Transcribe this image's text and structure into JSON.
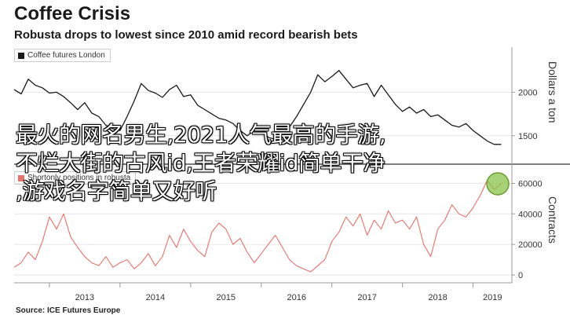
{
  "header": {
    "title": "Coffee Crisis",
    "subtitle": "Robusta drops to lowest since 2010 amid record bearish bets"
  },
  "source": "Source: ICE Futures Europe",
  "overlay_text": [
    "最火的网名男生,2021人气最高的手游,",
    "不烂大街的古风id,王者荣耀id简单干净",
    ",游戏名字简单又好听"
  ],
  "colors": {
    "price_line": "#1a1a1a",
    "positions_line": "#e8716a",
    "highlight_circle": "#8bc34a",
    "grid": "#e6e6e6"
  },
  "chart_data": [
    {
      "type": "line",
      "legend": "Coffee futures London",
      "ylabel": "Dollars a ton",
      "ylim": [
        1200,
        2500
      ],
      "yticks": [
        1500,
        2000
      ],
      "xlim": [
        2012.5,
        2019.55
      ],
      "series": [
        {
          "name": "Coffee futures London",
          "x": [
            2012.5,
            2012.6,
            2012.7,
            2012.8,
            2012.9,
            2013.0,
            2013.1,
            2013.2,
            2013.3,
            2013.4,
            2013.5,
            2013.6,
            2013.7,
            2013.8,
            2013.9,
            2014.0,
            2014.1,
            2014.2,
            2014.3,
            2014.4,
            2014.5,
            2014.6,
            2014.7,
            2014.8,
            2014.9,
            2015.0,
            2015.1,
            2015.2,
            2015.3,
            2015.4,
            2015.5,
            2015.6,
            2015.7,
            2015.8,
            2015.9,
            2016.0,
            2016.1,
            2016.2,
            2016.3,
            2016.4,
            2016.5,
            2016.6,
            2016.7,
            2016.8,
            2016.9,
            2017.0,
            2017.1,
            2017.2,
            2017.3,
            2017.4,
            2017.5,
            2017.6,
            2017.7,
            2017.8,
            2017.9,
            2018.0,
            2018.1,
            2018.2,
            2018.3,
            2018.4,
            2018.5,
            2018.6,
            2018.7,
            2018.8,
            2018.9,
            2019.0,
            2019.1,
            2019.2,
            2019.3,
            2019.4
          ],
          "values": [
            2030,
            1980,
            2150,
            2080,
            2050,
            1990,
            2000,
            1950,
            1880,
            1800,
            1880,
            1760,
            1720,
            1620,
            1580,
            1560,
            1720,
            1900,
            2100,
            2020,
            1990,
            1940,
            2030,
            2080,
            1950,
            1970,
            1850,
            1800,
            1750,
            1700,
            1680,
            1640,
            1560,
            1500,
            1560,
            1580,
            1480,
            1460,
            1540,
            1600,
            1720,
            1860,
            2000,
            2200,
            2120,
            2180,
            2250,
            2150,
            2050,
            2080,
            2100,
            1950,
            2080,
            1970,
            1860,
            1780,
            1830,
            1760,
            1800,
            1720,
            1740,
            1680,
            1620,
            1600,
            1640,
            1560,
            1500,
            1440,
            1400,
            1400
          ]
        }
      ]
    },
    {
      "type": "line",
      "legend": "Shortonly positions in robusta",
      "ylabel": "Contracts",
      "ylim": [
        0,
        70000
      ],
      "yticks": [
        0,
        20000,
        40000,
        60000
      ],
      "xlim": [
        2012.5,
        2019.55
      ],
      "xticks": [
        "2013",
        "2014",
        "2015",
        "2016",
        "2017",
        "2018",
        "2019"
      ],
      "series": [
        {
          "name": "Shortonly positions in robusta",
          "x": [
            2012.5,
            2012.6,
            2012.7,
            2012.8,
            2012.9,
            2013.0,
            2013.1,
            2013.2,
            2013.3,
            2013.4,
            2013.5,
            2013.6,
            2013.7,
            2013.8,
            2013.9,
            2014.0,
            2014.1,
            2014.2,
            2014.3,
            2014.4,
            2014.5,
            2014.6,
            2014.7,
            2014.8,
            2014.9,
            2015.0,
            2015.1,
            2015.2,
            2015.3,
            2015.4,
            2015.5,
            2015.6,
            2015.7,
            2015.8,
            2015.9,
            2016.0,
            2016.1,
            2016.2,
            2016.3,
            2016.4,
            2016.5,
            2016.6,
            2016.7,
            2016.8,
            2016.9,
            2017.0,
            2017.1,
            2017.2,
            2017.3,
            2017.4,
            2017.5,
            2017.6,
            2017.7,
            2017.8,
            2017.9,
            2018.0,
            2018.1,
            2018.2,
            2018.3,
            2018.4,
            2018.5,
            2018.6,
            2018.7,
            2018.8,
            2018.9,
            2019.0,
            2019.1,
            2019.2,
            2019.3,
            2019.4
          ],
          "values": [
            5000,
            8000,
            15000,
            10000,
            22000,
            38000,
            30000,
            40000,
            25000,
            18000,
            12000,
            8000,
            6000,
            12000,
            5000,
            8000,
            10000,
            4000,
            8000,
            14000,
            6000,
            12000,
            26000,
            18000,
            30000,
            22000,
            16000,
            12000,
            28000,
            34000,
            30000,
            20000,
            24000,
            15000,
            8000,
            14000,
            20000,
            26000,
            18000,
            10000,
            6000,
            4000,
            2000,
            6000,
            10000,
            22000,
            28000,
            38000,
            32000,
            40000,
            26000,
            36000,
            30000,
            42000,
            34000,
            36000,
            30000,
            38000,
            20000,
            12000,
            30000,
            36000,
            46000,
            40000,
            38000,
            44000,
            52000,
            62000,
            56000,
            60000
          ]
        }
      ]
    }
  ]
}
